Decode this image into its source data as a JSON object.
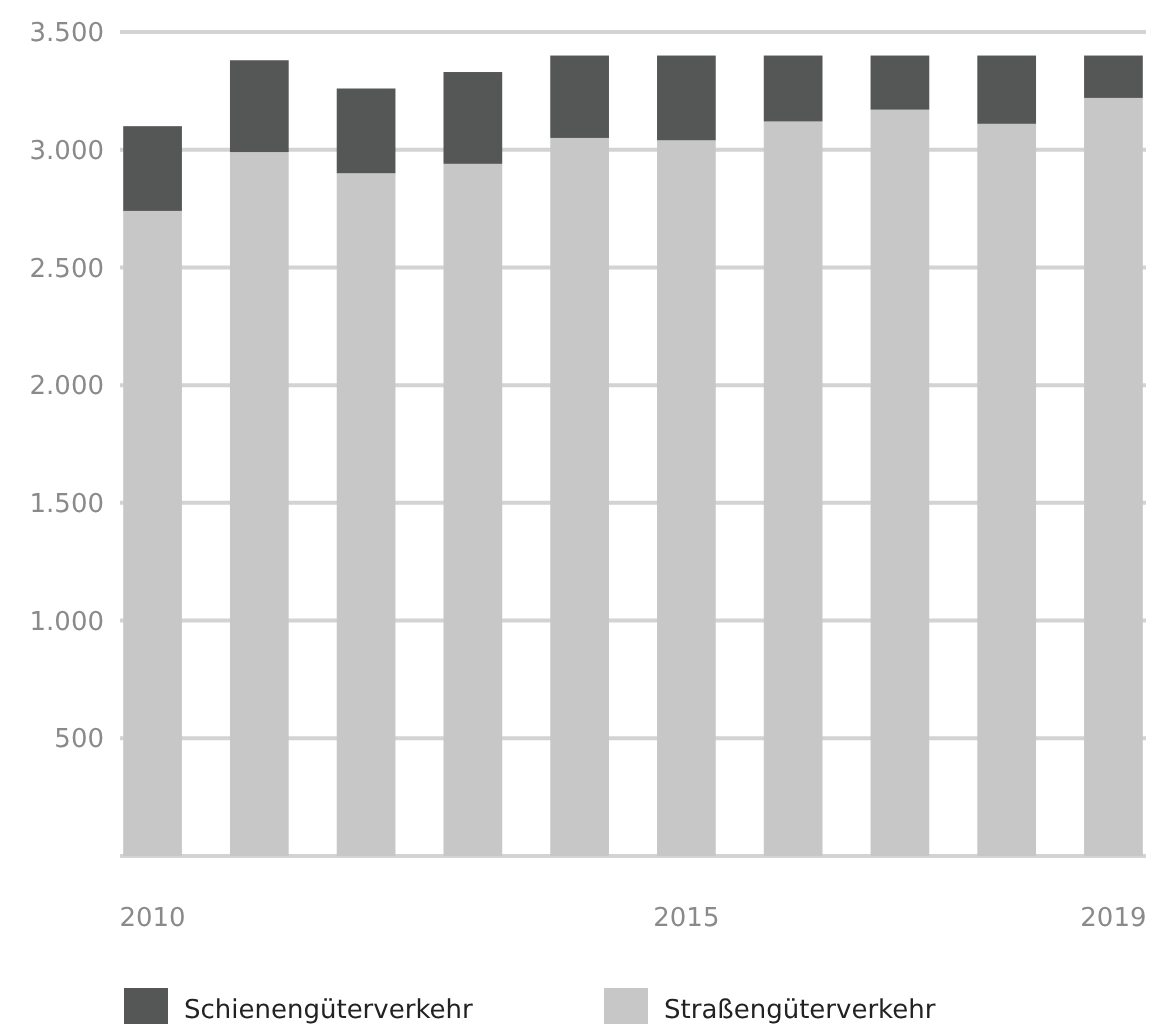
{
  "chart_data": {
    "type": "bar",
    "stacked": true,
    "categories": [
      "2010",
      null,
      null,
      null,
      null,
      "2015",
      null,
      null,
      null,
      "2019"
    ],
    "series": [
      {
        "name": "Straßengüterverkehr",
        "color": "#c6c7c6",
        "values": [
          2740,
          2990,
          2900,
          2940,
          3050,
          3040,
          3120,
          3170,
          3110,
          3220
        ]
      },
      {
        "name": "Schienengüterverkehr",
        "color": "#555756",
        "values": [
          360,
          390,
          360,
          390,
          350,
          360,
          280,
          230,
          290,
          180
        ]
      }
    ],
    "ylim": [
      0,
      3500
    ],
    "yticks": [
      {
        "value": 500,
        "label": "500"
      },
      {
        "value": 1000,
        "label": "1.000"
      },
      {
        "value": 1500,
        "label": "1.500"
      },
      {
        "value": 2000,
        "label": "2.000"
      },
      {
        "value": 2500,
        "label": "2.500"
      },
      {
        "value": 3000,
        "label": "3.000"
      },
      {
        "value": 3500,
        "label": "3.500"
      }
    ],
    "grid": "y",
    "legend": "bottom"
  }
}
